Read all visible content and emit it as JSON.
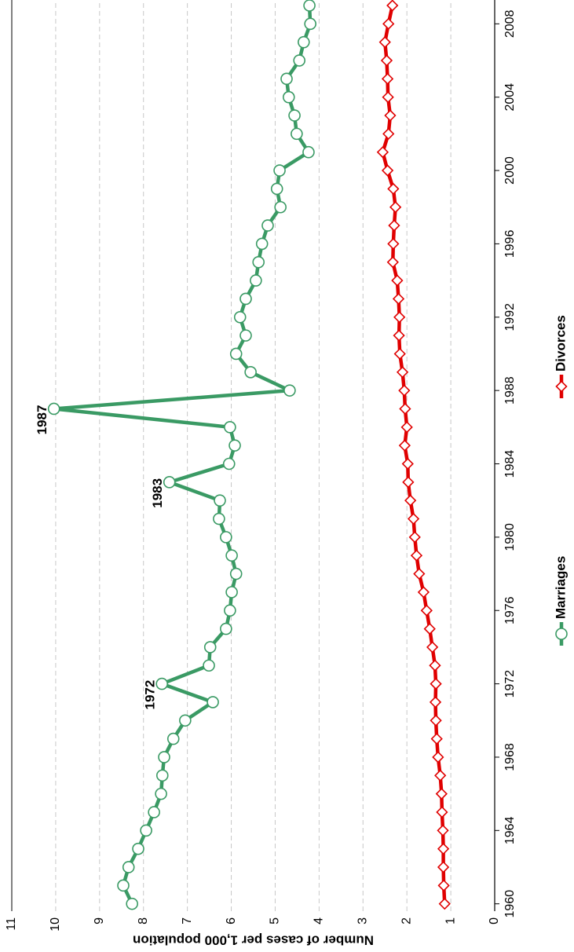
{
  "chart_data": {
    "type": "line",
    "y_label": "Number of cases per 1,000 population",
    "x": [
      1960,
      1961,
      1962,
      1963,
      1964,
      1965,
      1966,
      1967,
      1968,
      1969,
      1970,
      1971,
      1972,
      1973,
      1974,
      1975,
      1976,
      1977,
      1978,
      1979,
      1980,
      1981,
      1982,
      1983,
      1984,
      1985,
      1986,
      1987,
      1988,
      1989,
      1990,
      1991,
      1992,
      1993,
      1994,
      1995,
      1996,
      1997,
      1998,
      1999,
      2000,
      2001,
      2002,
      2003,
      2004,
      2005,
      2006,
      2007,
      2008,
      2009
    ],
    "series": [
      {
        "name": "Marriages",
        "color": "#3a9a64",
        "marker": "circle",
        "values": [
          8.26,
          8.46,
          8.34,
          8.12,
          7.94,
          7.76,
          7.6,
          7.57,
          7.53,
          7.32,
          7.05,
          6.42,
          7.58,
          6.51,
          6.48,
          6.12,
          6.03,
          5.99,
          5.89,
          5.99,
          6.12,
          6.28,
          6.26,
          7.41,
          6.05,
          5.92,
          6.03,
          10.04,
          4.67,
          5.56,
          5.89,
          5.67,
          5.8,
          5.67,
          5.44,
          5.38,
          5.3,
          5.17,
          4.88,
          4.96,
          4.9,
          4.24,
          4.51,
          4.56,
          4.69,
          4.74,
          4.45,
          4.35,
          4.2,
          4.22
        ]
      },
      {
        "name": "Divorces",
        "color": "#e00000",
        "marker": "diamond",
        "values": [
          1.14,
          1.16,
          1.17,
          1.17,
          1.18,
          1.2,
          1.21,
          1.24,
          1.29,
          1.32,
          1.34,
          1.35,
          1.34,
          1.36,
          1.42,
          1.48,
          1.55,
          1.62,
          1.72,
          1.78,
          1.82,
          1.85,
          1.92,
          1.97,
          1.98,
          2.05,
          2.0,
          2.04,
          2.06,
          2.1,
          2.16,
          2.18,
          2.17,
          2.19,
          2.22,
          2.32,
          2.31,
          2.29,
          2.26,
          2.31,
          2.44,
          2.55,
          2.42,
          2.38,
          2.43,
          2.44,
          2.46,
          2.5,
          2.42,
          2.33
        ]
      }
    ],
    "annotations": [
      "1972",
      "1983",
      "1987"
    ],
    "xlim": [
      1959.6,
      2009.3
    ],
    "xticks": [
      1960,
      1964,
      1968,
      1972,
      1976,
      1980,
      1984,
      1988,
      1992,
      1996,
      2000,
      2004,
      2008
    ],
    "ylim": [
      0,
      11
    ],
    "yticks": [
      0,
      1,
      2,
      3,
      4,
      5,
      6,
      7,
      8,
      9,
      10,
      11
    ],
    "grid": true,
    "legend": "bottom"
  }
}
